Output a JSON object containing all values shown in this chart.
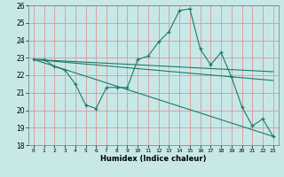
{
  "title": "",
  "xlabel": "Humidex (Indice chaleur)",
  "xlim": [
    -0.5,
    23.5
  ],
  "ylim": [
    18,
    26
  ],
  "yticks": [
    18,
    19,
    20,
    21,
    22,
    23,
    24,
    25,
    26
  ],
  "xticks": [
    0,
    1,
    2,
    3,
    4,
    5,
    6,
    7,
    8,
    9,
    10,
    11,
    12,
    13,
    14,
    15,
    16,
    17,
    18,
    19,
    20,
    21,
    22,
    23
  ],
  "background_color": "#c8e8e8",
  "grid_color": "#d8a0a0",
  "line_color": "#1a7a6a",
  "lines": [
    {
      "x": [
        0,
        1,
        2,
        3,
        4,
        5,
        6,
        7,
        8,
        9,
        10,
        11,
        12,
        13,
        14,
        15,
        16,
        17,
        18,
        19,
        20,
        21,
        22,
        23
      ],
      "y": [
        22.9,
        22.9,
        22.5,
        22.3,
        21.5,
        20.3,
        20.1,
        21.3,
        21.3,
        21.3,
        22.9,
        23.1,
        23.9,
        24.5,
        25.7,
        25.8,
        23.5,
        22.6,
        23.3,
        21.9,
        20.2,
        19.1,
        19.5,
        18.5
      ],
      "marker": "+"
    },
    {
      "x": [
        0,
        23
      ],
      "y": [
        22.9,
        22.2
      ],
      "marker": null
    },
    {
      "x": [
        0,
        23
      ],
      "y": [
        22.9,
        21.7
      ],
      "marker": null
    },
    {
      "x": [
        0,
        23
      ],
      "y": [
        22.9,
        18.5
      ],
      "marker": null
    }
  ]
}
